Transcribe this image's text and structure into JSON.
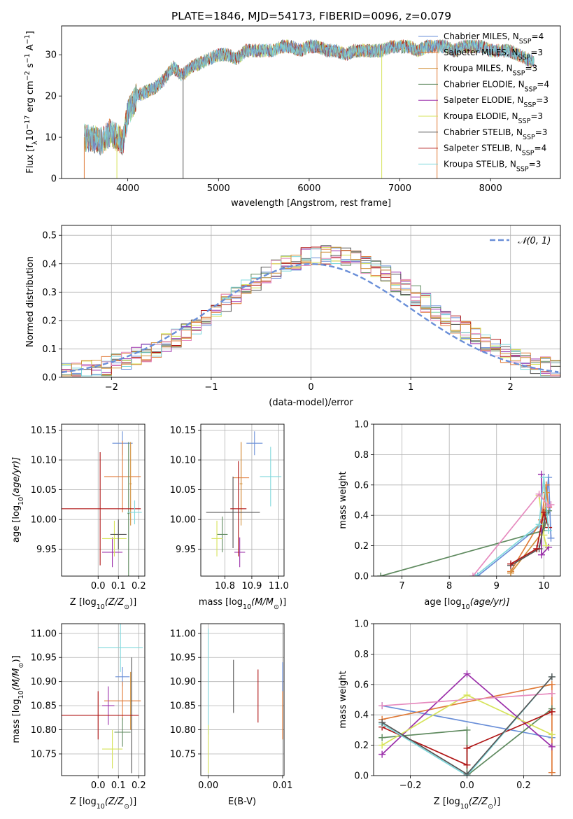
{
  "figure": {
    "title": "PLATE=1846, MJD=54173, FIBERID=0096, z=0.079"
  },
  "models": [
    {
      "label": "Chabrier MILES, N",
      "sub": "SSP",
      "tail": "=4",
      "color": "#6a8fd8"
    },
    {
      "label": "Salpeter MILES, N",
      "sub": "SSP",
      "tail": "=3",
      "color": "#e07b39"
    },
    {
      "label": "Kroupa MILES, N",
      "sub": "SSP",
      "tail": "=3",
      "color": "#d2923e"
    },
    {
      "label": "Chabrier ELODIE, N",
      "sub": "SSP",
      "tail": "=4",
      "color": "#5f8a5f"
    },
    {
      "label": "Salpeter ELODIE, N",
      "sub": "SSP",
      "tail": "=3",
      "color": "#9b2faa"
    },
    {
      "label": "Kroupa ELODIE, N",
      "sub": "SSP",
      "tail": "=3",
      "color": "#d6e35a"
    },
    {
      "label": "Chabrier STELIB, N",
      "sub": "SSP",
      "tail": "=3",
      "color": "#555555"
    },
    {
      "label": "Salpeter STELIB, N",
      "sub": "SSP",
      "tail": "=4",
      "color": "#b01515"
    },
    {
      "label": "Kroupa STELIB, N",
      "sub": "SSP",
      "tail": "=3",
      "color": "#7fd8dc"
    }
  ],
  "chart_data": [
    {
      "id": "spectrum",
      "type": "line",
      "xlabel": "wavelength [Angstrom, rest frame]",
      "ylabel_main": "Flux [f",
      "ylabel_sub": "λ",
      "ylabel_rest": "10",
      "ylabel_exp1": "−17",
      "ylabel_mid": " erg cm",
      "ylabel_exp2": "−2",
      "ylabel_mid2": " s",
      "ylabel_exp3": "−1",
      "ylabel_mid3": " A",
      "ylabel_exp4": "−1",
      "ylabel_end": "]",
      "xlim": [
        3270,
        8770
      ],
      "ylim": [
        0,
        37
      ],
      "xticks": [
        "4000",
        "5000",
        "6000",
        "7000",
        "8000"
      ],
      "yticks": [
        "0",
        "10",
        "20",
        "30"
      ],
      "grid": false,
      "legend_position": "top-right",
      "continuum": [
        [
          3520,
          10
        ],
        [
          3700,
          9
        ],
        [
          3800,
          11
        ],
        [
          3950,
          9
        ],
        [
          4000,
          16
        ],
        [
          4100,
          20
        ],
        [
          4200,
          21
        ],
        [
          4300,
          22
        ],
        [
          4400,
          24
        ],
        [
          4500,
          27
        ],
        [
          4600,
          25
        ],
        [
          4700,
          27
        ],
        [
          4800,
          28
        ],
        [
          4900,
          29
        ],
        [
          5000,
          30
        ],
        [
          5100,
          30
        ],
        [
          5200,
          29
        ],
        [
          5300,
          31
        ],
        [
          5400,
          31
        ],
        [
          5500,
          31
        ],
        [
          5600,
          31
        ],
        [
          5700,
          32
        ],
        [
          5800,
          32
        ],
        [
          5900,
          31
        ],
        [
          6000,
          32
        ],
        [
          6100,
          32
        ],
        [
          6200,
          31
        ],
        [
          6300,
          31
        ],
        [
          6400,
          30
        ],
        [
          6500,
          31
        ],
        [
          6600,
          31
        ],
        [
          6700,
          31
        ],
        [
          6800,
          31
        ],
        [
          6900,
          32
        ],
        [
          7000,
          32
        ],
        [
          7100,
          32
        ],
        [
          7200,
          31
        ],
        [
          7300,
          32
        ],
        [
          7400,
          32
        ],
        [
          7500,
          32
        ],
        [
          7600,
          31
        ],
        [
          7700,
          32
        ],
        [
          7800,
          32
        ],
        [
          7900,
          32
        ],
        [
          8000,
          31
        ],
        [
          8100,
          31
        ],
        [
          8200,
          31
        ],
        [
          8300,
          30
        ],
        [
          8400,
          29
        ],
        [
          8500,
          28
        ]
      ],
      "dips": [
        [
          3520,
          0
        ],
        [
          3880,
          0
        ],
        [
          4610,
          0
        ],
        [
          6800,
          0
        ],
        [
          7410,
          0
        ]
      ]
    },
    {
      "id": "residuals",
      "type": "histogram",
      "xlabel": "(data-model)/error",
      "ylabel": "Normed distribution",
      "xlim": [
        -2.5,
        2.5
      ],
      "ylim": [
        0,
        0.535
      ],
      "xticks": [
        -2,
        -1,
        0,
        1,
        2
      ],
      "xtick_labels": [
        "−2",
        "−1",
        "0",
        "1",
        "2"
      ],
      "yticks": [
        0.0,
        0.1,
        0.2,
        0.3,
        0.4,
        0.5
      ],
      "ytick_labels": [
        "0.0",
        "0.1",
        "0.2",
        "0.3",
        "0.4",
        "0.5"
      ],
      "grid": true,
      "bin_width": 0.1,
      "legend": "𝒩(0, 1)",
      "reference_curve": "normal(0,1)",
      "reference_color": "#6a8fd8"
    },
    {
      "id": "age_vs_z",
      "type": "errorbar",
      "xlabel_main": "Z [log",
      "xlabel_sub": "10",
      "xlabel_rest": "(Z/Z",
      "xlabel_sun": "⊙",
      "xlabel_end": ")]",
      "ylabel_main": "age  [log",
      "ylabel_sub": "10",
      "ylabel_end": "(age/yr)]",
      "xlim": [
        -0.18,
        0.23
      ],
      "ylim": [
        9.905,
        10.16
      ],
      "xticks": [
        0.0,
        0.1,
        0.2
      ],
      "xtick_labels": [
        "0.0",
        "0.1",
        "0.2"
      ],
      "yticks": [
        9.95,
        10.0,
        10.05,
        10.1,
        10.15
      ],
      "ytick_labels": [
        "9.95",
        "10.00",
        "10.05",
        "10.10",
        "10.15"
      ],
      "grid": true,
      "points": [
        {
          "model": 0,
          "x": 0.12,
          "y": 10.128,
          "xerr": 0.05,
          "yerr": 0.02
        },
        {
          "model": 1,
          "x": 0.12,
          "y": 10.072,
          "xerr": 0.09,
          "yerr": 0.06
        },
        {
          "model": 2,
          "x": 0.16,
          "y": 10.06,
          "xerr": 0.005,
          "yerr": 0.07
        },
        {
          "model": 3,
          "x": 0.15,
          "y": 10.01,
          "xerr": 0.005,
          "yerr": 0.12
        },
        {
          "model": 4,
          "x": 0.07,
          "y": 9.945,
          "xerr": 0.05,
          "yerr": 0.025
        },
        {
          "model": 5,
          "x": 0.08,
          "y": 9.968,
          "xerr": 0.06,
          "yerr": 0.03
        },
        {
          "model": 6,
          "x": 0.1,
          "y": 9.975,
          "xerr": 0.04,
          "yerr": 0.025
        },
        {
          "model": 7,
          "x": 0.01,
          "y": 10.018,
          "xerr": 0.2,
          "yerr": 0.095
        },
        {
          "model": 8,
          "x": 0.18,
          "y": 10.012,
          "xerr": 0.035,
          "yerr": 0.02
        }
      ]
    },
    {
      "id": "age_vs_mass",
      "type": "errorbar",
      "xlabel_main": "mass [log",
      "xlabel_sub": "10",
      "xlabel_rest": "(M/M",
      "xlabel_sun": "⊙",
      "xlabel_end": ")]",
      "xlim": [
        10.71,
        11.02
      ],
      "ylim": [
        9.905,
        10.16
      ],
      "xticks": [
        10.8,
        10.9,
        11.0
      ],
      "xtick_labels": [
        "10.8",
        "10.9",
        "11.0"
      ],
      "yticks": [
        9.95,
        10.0,
        10.05,
        10.1,
        10.15
      ],
      "ytick_labels": [
        "9.95",
        "10.00",
        "10.05",
        "10.10",
        "10.15"
      ],
      "grid": true,
      "points": [
        {
          "model": 0,
          "x": 10.91,
          "y": 10.128,
          "xerr": 0.03,
          "yerr": 0.02
        },
        {
          "model": 1,
          "x": 10.86,
          "y": 10.07,
          "xerr": 0.03,
          "yerr": 0.06
        },
        {
          "model": 2,
          "x": 10.86,
          "y": 10.06,
          "xerr": 0.005,
          "yerr": 0.07
        },
        {
          "model": 3,
          "x": 10.79,
          "y": 9.975,
          "xerr": 0.02,
          "yerr": 0.03
        },
        {
          "model": 4,
          "x": 10.855,
          "y": 9.945,
          "xerr": 0.02,
          "yerr": 0.025
        },
        {
          "model": 5,
          "x": 10.77,
          "y": 9.968,
          "xerr": 0.02,
          "yerr": 0.03
        },
        {
          "model": 6,
          "x": 10.83,
          "y": 10.012,
          "xerr": 0.1,
          "yerr": 0.06
        },
        {
          "model": 7,
          "x": 10.85,
          "y": 10.018,
          "xerr": 0.03,
          "yerr": 0.08
        },
        {
          "model": 8,
          "x": 10.97,
          "y": 10.072,
          "xerr": 0.04,
          "yerr": 0.05
        }
      ]
    },
    {
      "id": "weight_vs_age",
      "type": "line",
      "xlabel_main": "age  [log",
      "xlabel_sub": "10",
      "xlabel_end": "(age/yr)]",
      "ylabel": "mass weight",
      "xlim": [
        6.4,
        10.35
      ],
      "ylim": [
        0,
        1
      ],
      "xticks": [
        7,
        8,
        9,
        10
      ],
      "xtick_labels": [
        "7",
        "8",
        "9",
        "10"
      ],
      "yticks": [
        0,
        0.2,
        0.4,
        0.6,
        0.8,
        1.0
      ],
      "ytick_labels": [
        "0.0",
        "0.2",
        "0.4",
        "0.6",
        "0.8",
        "1.0"
      ],
      "grid": true,
      "series": [
        {
          "model": 0,
          "x": [
            8.6,
            10.0,
            10.1,
            10.15
          ],
          "y": [
            0.0,
            0.35,
            0.65,
            0.25
          ]
        },
        {
          "model": 1,
          "x": [
            9.3,
            9.95,
            10.05,
            10.1
          ],
          "y": [
            0.03,
            0.37,
            0.6,
            0.45
          ]
        },
        {
          "model": 2,
          "x": [
            9.3,
            10.0,
            10.05
          ],
          "y": [
            0.02,
            0.3,
            0.55
          ]
        },
        {
          "model": 3,
          "x": [
            6.55,
            10.0,
            10.1
          ],
          "y": [
            0.0,
            0.3,
            0.43
          ]
        },
        {
          "model": 4,
          "x": [
            9.95,
            9.95,
            10.1
          ],
          "y": [
            0.67,
            0.14,
            0.19
          ]
        },
        {
          "model": 5,
          "x": [
            9.9,
            10.0,
            10.05
          ],
          "y": [
            0.53,
            0.27,
            0.2
          ]
        },
        {
          "model": 6,
          "x": [
            9.3,
            9.9,
            10.05
          ],
          "y": [
            0.07,
            0.18,
            0.42
          ]
        },
        {
          "model": 7,
          "x": [
            9.3,
            9.85,
            10.0,
            10.1
          ],
          "y": [
            0.08,
            0.18,
            0.42,
            0.32
          ]
        },
        {
          "model": 8,
          "x": [
            8.55,
            9.9,
            10.0,
            10.1
          ],
          "y": [
            0.0,
            0.34,
            0.65,
            0.3
          ]
        },
        {
          "model": 9,
          "x": [
            8.5,
            9.9,
            10.1,
            10.15
          ],
          "y": [
            0.0,
            0.54,
            0.46,
            0.47
          ]
        }
      ]
    },
    {
      "id": "mass_vs_z",
      "type": "errorbar",
      "xlabel_main": "Z [log",
      "xlabel_sub": "10",
      "xlabel_rest": "(Z/Z",
      "xlabel_sun": "⊙",
      "xlabel_end": ")]",
      "ylabel_main": "mass [log",
      "ylabel_sub": "10",
      "ylabel_rest": "(M/M",
      "ylabel_sun": "⊙",
      "ylabel_end": ")]",
      "xlim": [
        -0.18,
        0.23
      ],
      "ylim": [
        10.705,
        11.02
      ],
      "xticks": [
        0.0,
        0.1,
        0.2
      ],
      "xtick_labels": [
        "0.0",
        "0.1",
        "0.2"
      ],
      "yticks": [
        10.75,
        10.8,
        10.85,
        10.9,
        10.95,
        11.0
      ],
      "ytick_labels": [
        "10.75",
        "10.80",
        "10.85",
        "10.90",
        "10.95",
        "11.00"
      ],
      "grid": true,
      "points": [
        {
          "model": 0,
          "x": 0.12,
          "y": 10.91,
          "xerr": 0.035,
          "yerr": 0.02
        },
        {
          "model": 1,
          "x": 0.12,
          "y": 10.86,
          "xerr": 0.09,
          "yerr": 0.04
        },
        {
          "model": 2,
          "x": 0.16,
          "y": 10.86,
          "xerr": 0.005,
          "yerr": 0.06
        },
        {
          "model": 3,
          "x": 0.12,
          "y": 10.795,
          "xerr": 0.04,
          "yerr": 0.03
        },
        {
          "model": 4,
          "x": 0.05,
          "y": 10.85,
          "xerr": 0.03,
          "yerr": 0.04
        },
        {
          "model": 5,
          "x": 0.07,
          "y": 10.76,
          "xerr": 0.05,
          "yerr": 0.04
        },
        {
          "model": 6,
          "x": 0.165,
          "y": 10.83,
          "xerr": 0.005,
          "yerr": 0.12
        },
        {
          "model": 7,
          "x": 0.0,
          "y": 10.83,
          "xerr": 0.2,
          "yerr": 0.05
        },
        {
          "model": 8,
          "x": 0.11,
          "y": 10.97,
          "xerr": 0.11,
          "yerr": 0.05
        }
      ]
    },
    {
      "id": "mass_vs_ebv",
      "type": "errorbar",
      "xlabel": "E(B-V)",
      "xlim": [
        -0.001,
        0.0102
      ],
      "ylim": [
        10.705,
        11.02
      ],
      "xticks": [
        0.0,
        0.01
      ],
      "xtick_labels": [
        "0.00",
        "0.01"
      ],
      "yticks": [
        10.75,
        10.8,
        10.85,
        10.9,
        10.95,
        11.0
      ],
      "ytick_labels": [
        "10.75",
        "10.80",
        "10.85",
        "10.90",
        "10.95",
        "11.00"
      ],
      "grid": true,
      "points": [
        {
          "model": 8,
          "x": 0.0,
          "y": 10.9,
          "xerr": 0.0,
          "yerr": 0.11
        },
        {
          "model": 5,
          "x": 0.0,
          "y": 10.76,
          "xerr": 0.0,
          "yerr": 0.05
        },
        {
          "model": 6,
          "x": 0.0034,
          "y": 10.89,
          "xerr": 0.0,
          "yerr": 0.055
        },
        {
          "model": 7,
          "x": 0.0067,
          "y": 10.87,
          "xerr": 0.0,
          "yerr": 0.055
        },
        {
          "model": 1,
          "x": 0.01,
          "y": 10.84,
          "xerr": 0.0,
          "yerr": 0.06
        },
        {
          "model": 0,
          "x": 0.01,
          "y": 10.91,
          "xerr": 0.0,
          "yerr": 0.03
        }
      ]
    },
    {
      "id": "weight_vs_z",
      "type": "line",
      "xlabel_main": "Z [log",
      "xlabel_sub": "10",
      "xlabel_rest": "(Z/Z",
      "xlabel_sun": "⊙",
      "xlabel_end": ")]",
      "ylabel": "mass weight",
      "xlim": [
        -0.33,
        0.33
      ],
      "ylim": [
        0,
        1
      ],
      "xticks": [
        -0.2,
        0.0,
        0.2
      ],
      "xtick_labels": [
        "−0.2",
        "0.0",
        "0.2"
      ],
      "yticks": [
        0,
        0.2,
        0.4,
        0.6,
        0.8,
        1.0
      ],
      "ytick_labels": [
        "0.0",
        "0.2",
        "0.4",
        "0.6",
        "0.8",
        "1.0"
      ],
      "grid": true,
      "series": [
        {
          "model": 0,
          "x": [
            -0.3,
            0.3
          ],
          "y": [
            0.46,
            0.25
          ]
        },
        {
          "model": 1,
          "x": [
            -0.3,
            0.3,
            0.3
          ],
          "y": [
            0.37,
            0.6,
            0.02
          ]
        },
        {
          "model": 3,
          "x": [
            -0.3,
            0.0,
            0.0,
            0.3
          ],
          "y": [
            0.25,
            0.3,
            0.0,
            0.44
          ]
        },
        {
          "model": 4,
          "x": [
            -0.3,
            0.0,
            0.3
          ],
          "y": [
            0.14,
            0.67,
            0.19
          ]
        },
        {
          "model": 5,
          "x": [
            -0.3,
            0.0,
            0.3
          ],
          "y": [
            0.2,
            0.53,
            0.27
          ]
        },
        {
          "model": 7,
          "x": [
            -0.3,
            0.0,
            0.0,
            0.3
          ],
          "y": [
            0.32,
            0.07,
            0.18,
            0.42
          ]
        },
        {
          "model": 8,
          "x": [
            -0.3,
            0.0,
            0.3
          ],
          "y": [
            0.34,
            0.0,
            0.65
          ]
        },
        {
          "model": 9,
          "x": [
            -0.3,
            0.3
          ],
          "y": [
            0.46,
            0.54
          ]
        },
        {
          "model": 6,
          "x": [
            -0.3,
            0.0,
            0.3
          ],
          "y": [
            0.35,
            0.01,
            0.65
          ]
        }
      ]
    }
  ],
  "extra_colors": [
    "#e68bbf"
  ]
}
